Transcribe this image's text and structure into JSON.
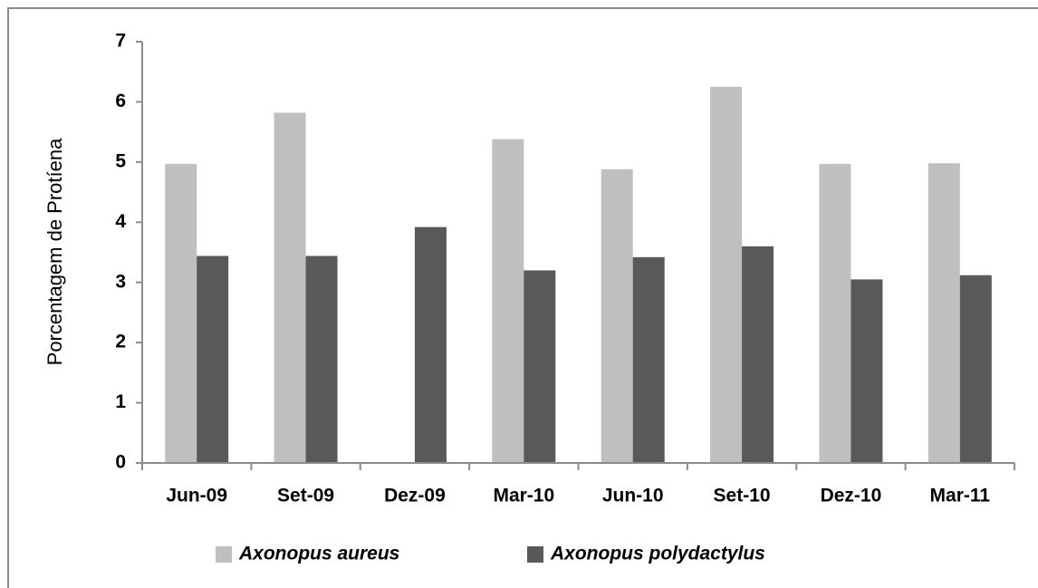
{
  "chart_data": {
    "type": "bar",
    "y_label": "Porcentagem de Protíena",
    "categories": [
      "Jun-09",
      "Set-09",
      "Dez-09",
      "Mar-10",
      "Jun-10",
      "Set-10",
      "Dez-10",
      "Mar-11"
    ],
    "series": [
      {
        "name": "Axonopus aureus",
        "color": "#bfbfbf",
        "values": [
          4.97,
          5.82,
          null,
          5.38,
          4.88,
          6.25,
          4.97,
          4.98
        ]
      },
      {
        "name": "Axonopus polydactylus",
        "color": "#595959",
        "values": [
          3.44,
          3.44,
          3.92,
          3.2,
          3.42,
          3.6,
          3.05,
          3.12
        ]
      }
    ],
    "ylim": [
      0,
      7
    ],
    "yticks": [
      0,
      1,
      2,
      3,
      4,
      5,
      6,
      7
    ],
    "grid": false,
    "legend": "bottom"
  }
}
